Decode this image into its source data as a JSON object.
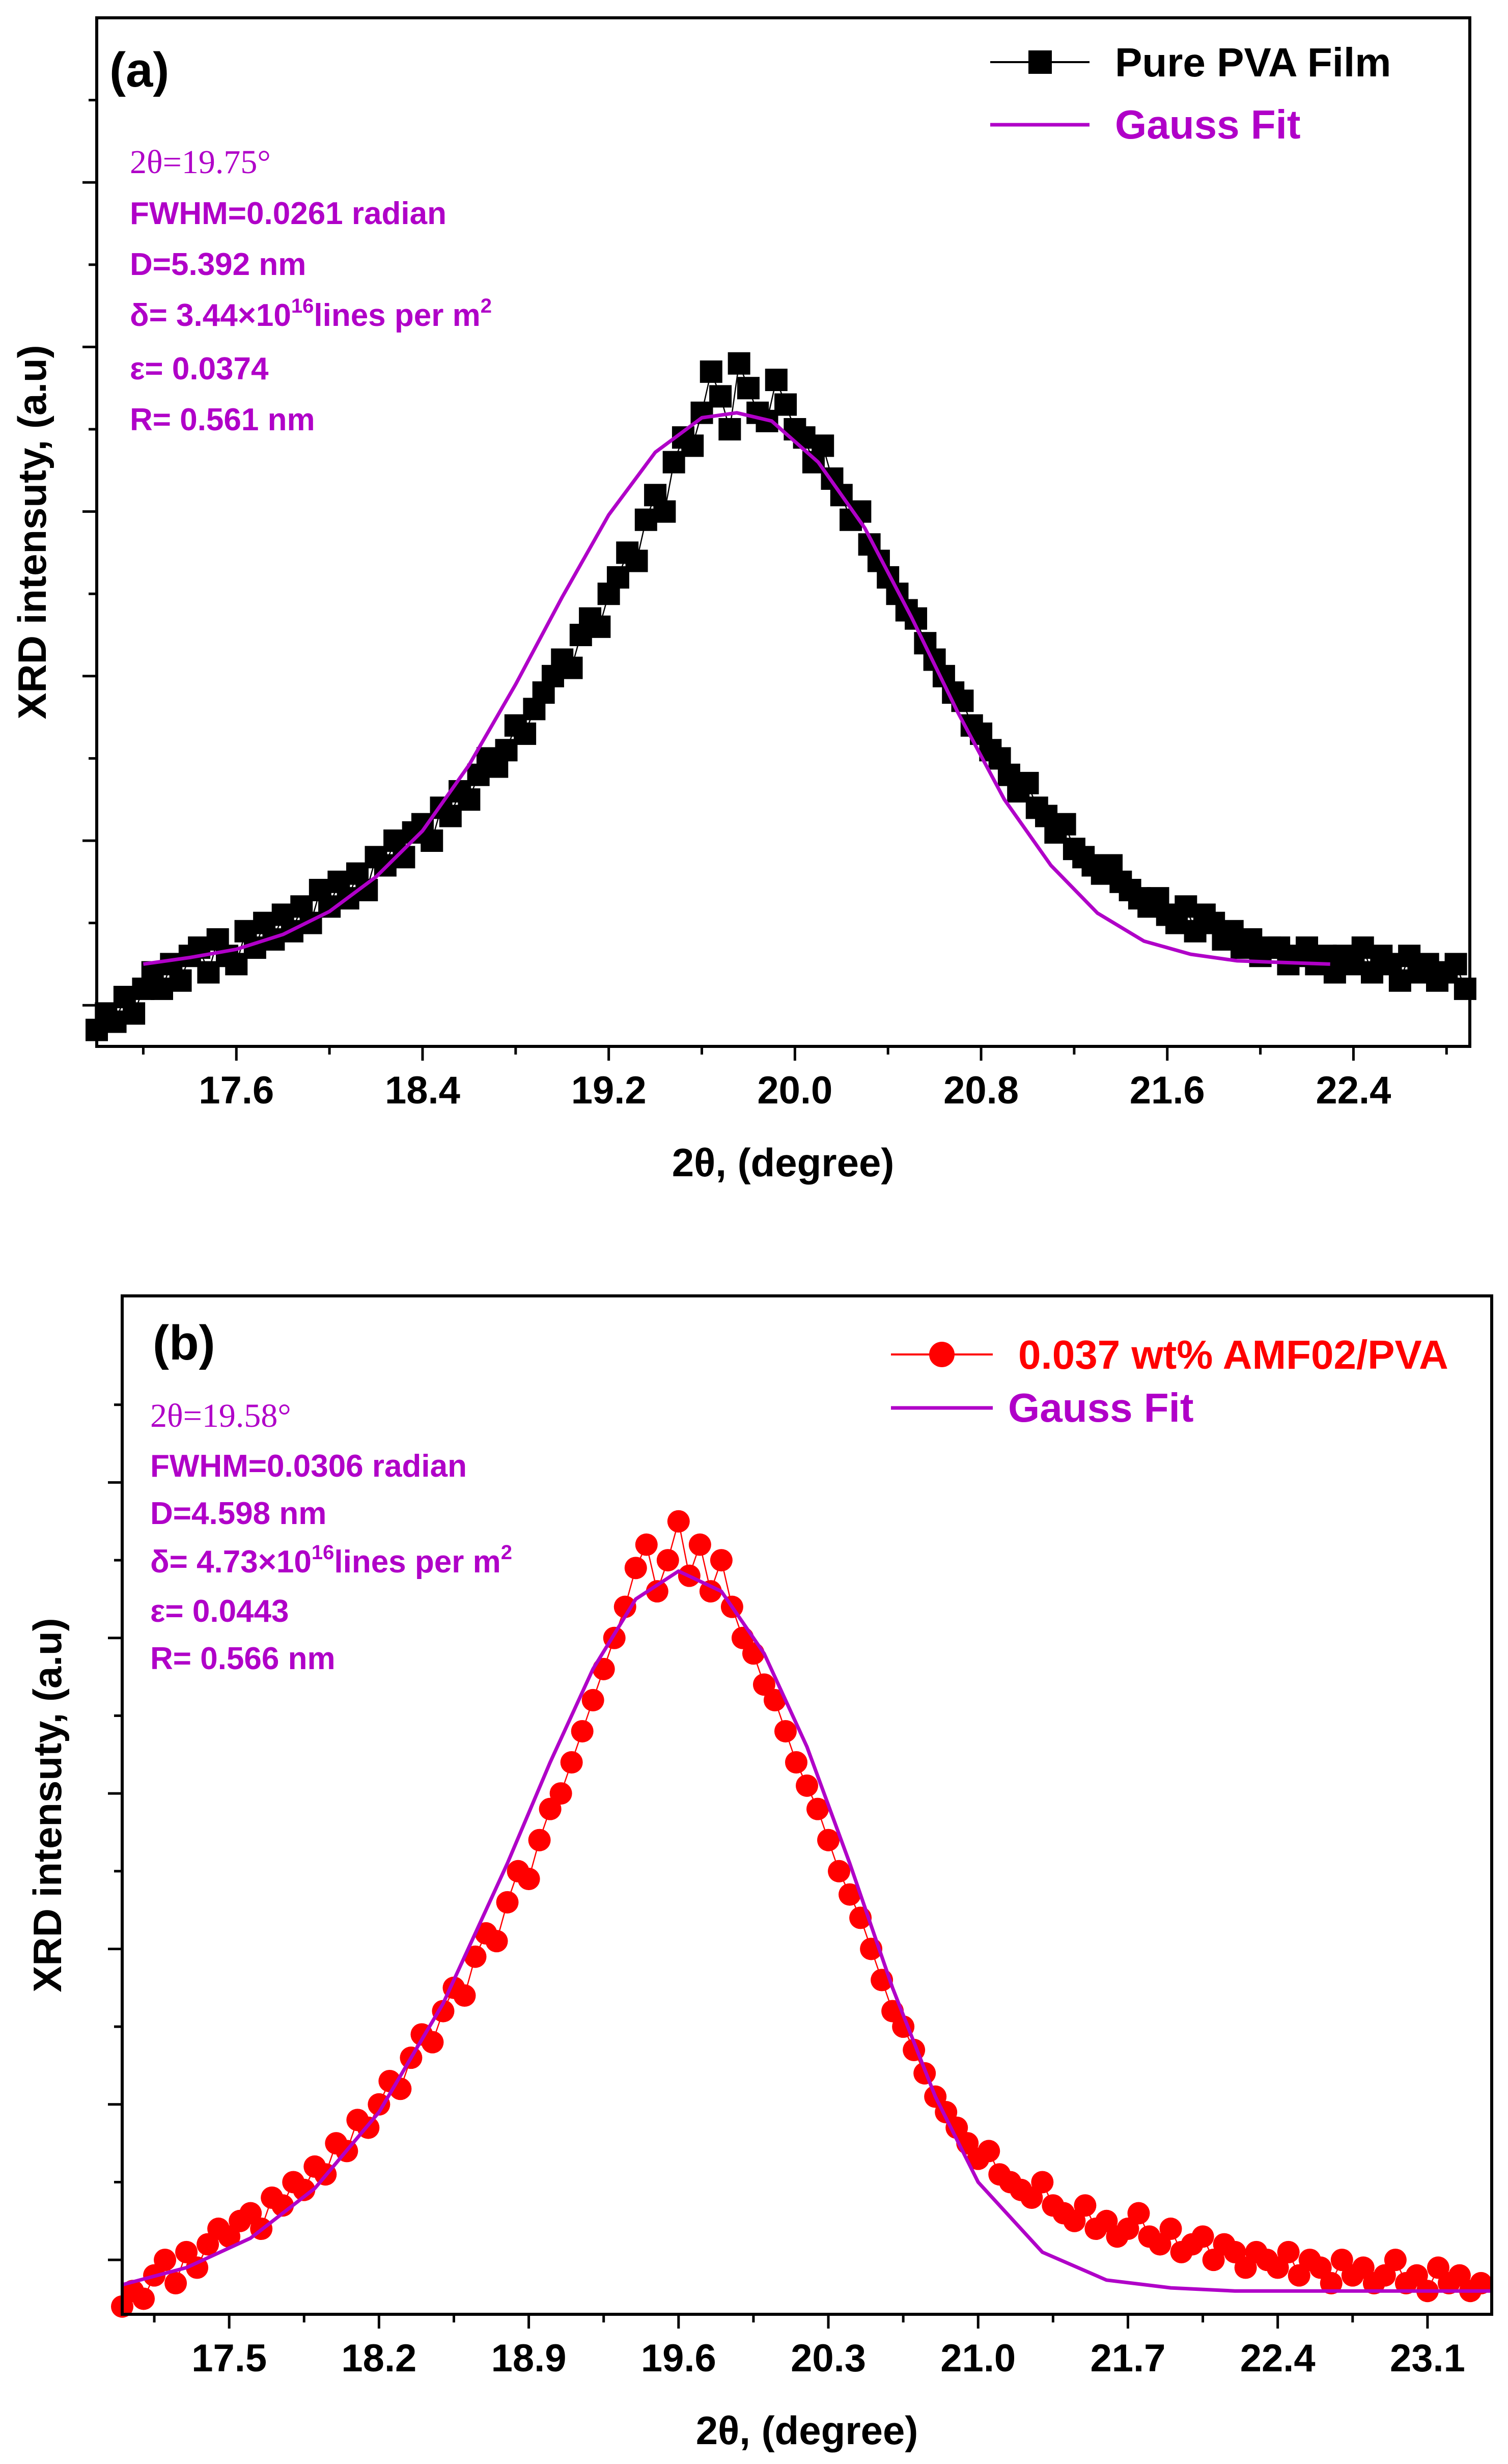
{
  "chart_data": [
    {
      "type": "scatter",
      "panel_label": "(a)",
      "xlabel": "2θ, (degree)",
      "ylabel": "XRD intensuty, (a.u)",
      "xlim": [
        17.0,
        22.9
      ],
      "ylim": [
        0.75,
        7.0
      ],
      "x_ticks": [
        "17.6",
        "18.4",
        "19.2",
        "20.0",
        "20.8",
        "21.6",
        "22.4"
      ],
      "x_tick_values": [
        17.6,
        18.4,
        19.2,
        20.0,
        20.8,
        21.6,
        22.4
      ],
      "y_major_ticks": [
        1,
        2,
        3,
        4,
        5,
        6
      ],
      "series": [
        {
          "name": "Pure PVA Film",
          "marker": "square",
          "color": "#000000",
          "x": [
            17.0,
            17.04,
            17.08,
            17.12,
            17.16,
            17.2,
            17.24,
            17.28,
            17.32,
            17.36,
            17.4,
            17.44,
            17.48,
            17.52,
            17.56,
            17.6,
            17.64,
            17.68,
            17.72,
            17.76,
            17.8,
            17.84,
            17.88,
            17.92,
            17.96,
            18.0,
            18.04,
            18.08,
            18.12,
            18.16,
            18.2,
            18.24,
            18.28,
            18.32,
            18.36,
            18.4,
            18.44,
            18.48,
            18.52,
            18.56,
            18.6,
            18.64,
            18.68,
            18.72,
            18.76,
            18.8,
            18.84,
            18.88,
            18.92,
            18.96,
            19.0,
            19.04,
            19.08,
            19.12,
            19.16,
            19.2,
            19.24,
            19.28,
            19.32,
            19.36,
            19.4,
            19.44,
            19.48,
            19.52,
            19.56,
            19.6,
            19.64,
            19.68,
            19.72,
            19.76,
            19.8,
            19.84,
            19.88,
            19.92,
            19.96,
            20.0,
            20.04,
            20.08,
            20.12,
            20.16,
            20.2,
            20.24,
            20.28,
            20.32,
            20.36,
            20.4,
            20.44,
            20.48,
            20.52,
            20.56,
            20.6,
            20.64,
            20.68,
            20.72,
            20.76,
            20.8,
            20.84,
            20.88,
            20.92,
            20.96,
            21.0,
            21.04,
            21.08,
            21.12,
            21.16,
            21.2,
            21.24,
            21.28,
            21.32,
            21.36,
            21.4,
            21.44,
            21.48,
            21.52,
            21.56,
            21.6,
            21.64,
            21.68,
            21.72,
            21.76,
            21.8,
            21.84,
            21.88,
            21.92,
            21.96,
            22.0,
            22.04,
            22.08,
            22.12,
            22.16,
            22.2,
            22.24,
            22.28,
            22.32,
            22.36,
            22.4,
            22.44,
            22.48,
            22.52,
            22.56,
            22.6,
            22.64,
            22.68,
            22.72,
            22.76,
            22.8,
            22.84,
            22.88
          ],
          "y": [
            0.85,
            0.95,
            0.9,
            1.05,
            0.95,
            1.1,
            1.2,
            1.1,
            1.25,
            1.15,
            1.3,
            1.35,
            1.2,
            1.4,
            1.3,
            1.25,
            1.45,
            1.35,
            1.5,
            1.4,
            1.55,
            1.45,
            1.6,
            1.5,
            1.7,
            1.6,
            1.75,
            1.65,
            1.8,
            1.7,
            1.9,
            1.85,
            2.0,
            1.9,
            2.05,
            2.1,
            2.0,
            2.2,
            2.15,
            2.3,
            2.25,
            2.4,
            2.5,
            2.45,
            2.55,
            2.7,
            2.65,
            2.8,
            2.9,
            3.0,
            3.1,
            3.05,
            3.25,
            3.35,
            3.3,
            3.5,
            3.6,
            3.75,
            3.7,
            3.95,
            4.1,
            4.0,
            4.3,
            4.45,
            4.4,
            4.6,
            4.85,
            4.7,
            4.5,
            4.9,
            4.75,
            4.6,
            4.55,
            4.8,
            4.65,
            4.5,
            4.45,
            4.3,
            4.4,
            4.2,
            4.1,
            3.95,
            4.0,
            3.8,
            3.7,
            3.6,
            3.5,
            3.4,
            3.35,
            3.2,
            3.1,
            3.0,
            2.9,
            2.85,
            2.7,
            2.65,
            2.55,
            2.5,
            2.4,
            2.3,
            2.35,
            2.2,
            2.15,
            2.05,
            2.1,
            1.95,
            1.9,
            1.85,
            1.8,
            1.85,
            1.75,
            1.7,
            1.65,
            1.6,
            1.65,
            1.55,
            1.5,
            1.6,
            1.45,
            1.55,
            1.5,
            1.4,
            1.45,
            1.35,
            1.4,
            1.3,
            1.35,
            1.35,
            1.25,
            1.3,
            1.35,
            1.25,
            1.3,
            1.2,
            1.3,
            1.25,
            1.35,
            1.2,
            1.3,
            1.25,
            1.15,
            1.3,
            1.2,
            1.25,
            1.15,
            1.2,
            1.25,
            1.1
          ]
        },
        {
          "name": "Gauss Fit",
          "color": "#b000c8",
          "x": [
            17.2,
            17.4,
            17.6,
            17.8,
            18.0,
            18.2,
            18.4,
            18.6,
            18.8,
            19.0,
            19.2,
            19.4,
            19.6,
            19.75,
            19.9,
            20.1,
            20.3,
            20.5,
            20.7,
            20.9,
            21.1,
            21.3,
            21.5,
            21.7,
            21.9,
            22.1,
            22.3
          ],
          "y": [
            1.25,
            1.29,
            1.34,
            1.43,
            1.57,
            1.78,
            2.06,
            2.46,
            2.95,
            3.48,
            3.98,
            4.36,
            4.57,
            4.6,
            4.55,
            4.3,
            3.9,
            3.36,
            2.78,
            2.25,
            1.85,
            1.56,
            1.39,
            1.31,
            1.27,
            1.26,
            1.25
          ]
        }
      ],
      "annotations": {
        "two_theta": "2θ=19.75°",
        "fwhm": "FWHM=0.0261 radian",
        "d": "D=5.392 nm",
        "delta_prefix": "δ= 3.44×10",
        "delta_exp": "16",
        "delta_suffix": "lines per m",
        "delta_sup2": "2",
        "epsilon": "ε= 0.0374",
        "r": "R= 0.561 nm"
      }
    },
    {
      "type": "scatter",
      "panel_label": "(b)",
      "xlabel": "2θ, (degree)",
      "ylabel": "XRD intensuty, (a.u)",
      "xlim": [
        17.0,
        23.4
      ],
      "ylim": [
        0.65,
        7.2
      ],
      "x_ticks": [
        "17.5",
        "18.2",
        "18.9",
        "19.6",
        "20.3",
        "21.0",
        "21.7",
        "22.4",
        "23.1"
      ],
      "x_tick_values": [
        17.5,
        18.2,
        18.9,
        19.6,
        20.3,
        21.0,
        21.7,
        22.4,
        23.1
      ],
      "y_major_ticks": [
        1,
        2,
        3,
        4,
        5,
        6
      ],
      "series": [
        {
          "name": "0.037 wt% AMF02/PVA",
          "marker": "circle",
          "color": "#ff0000",
          "x": [
            17.0,
            17.05,
            17.1,
            17.15,
            17.2,
            17.25,
            17.3,
            17.35,
            17.4,
            17.45,
            17.5,
            17.55,
            17.6,
            17.65,
            17.7,
            17.75,
            17.8,
            17.85,
            17.9,
            17.95,
            18.0,
            18.05,
            18.1,
            18.15,
            18.2,
            18.25,
            18.3,
            18.35,
            18.4,
            18.45,
            18.5,
            18.55,
            18.6,
            18.65,
            18.7,
            18.75,
            18.8,
            18.85,
            18.9,
            18.95,
            19.0,
            19.05,
            19.1,
            19.15,
            19.2,
            19.25,
            19.3,
            19.35,
            19.4,
            19.45,
            19.5,
            19.55,
            19.6,
            19.65,
            19.7,
            19.75,
            19.8,
            19.85,
            19.9,
            19.95,
            20.0,
            20.05,
            20.1,
            20.15,
            20.2,
            20.25,
            20.3,
            20.35,
            20.4,
            20.45,
            20.5,
            20.55,
            20.6,
            20.65,
            20.7,
            20.75,
            20.8,
            20.85,
            20.9,
            20.95,
            21.0,
            21.05,
            21.1,
            21.15,
            21.2,
            21.25,
            21.3,
            21.35,
            21.4,
            21.45,
            21.5,
            21.55,
            21.6,
            21.65,
            21.7,
            21.75,
            21.8,
            21.85,
            21.9,
            21.95,
            22.0,
            22.05,
            22.1,
            22.15,
            22.2,
            22.25,
            22.3,
            22.35,
            22.4,
            22.45,
            22.5,
            22.55,
            22.6,
            22.65,
            22.7,
            22.75,
            22.8,
            22.85,
            22.9,
            22.95,
            23.0,
            23.05,
            23.1,
            23.15,
            23.2,
            23.25,
            23.3,
            23.35
          ],
          "y": [
            0.7,
            0.8,
            0.75,
            0.9,
            1.0,
            0.85,
            1.05,
            0.95,
            1.1,
            1.2,
            1.15,
            1.25,
            1.3,
            1.2,
            1.4,
            1.35,
            1.5,
            1.45,
            1.6,
            1.55,
            1.75,
            1.7,
            1.9,
            1.85,
            2.0,
            2.15,
            2.1,
            2.3,
            2.45,
            2.4,
            2.6,
            2.75,
            2.7,
            2.95,
            3.1,
            3.05,
            3.3,
            3.5,
            3.45,
            3.7,
            3.9,
            4.0,
            4.2,
            4.4,
            4.6,
            4.8,
            5.0,
            5.2,
            5.45,
            5.6,
            5.3,
            5.5,
            5.75,
            5.4,
            5.6,
            5.3,
            5.5,
            5.2,
            5.0,
            4.9,
            4.7,
            4.6,
            4.4,
            4.2,
            4.05,
            3.9,
            3.7,
            3.5,
            3.35,
            3.2,
            3.0,
            2.8,
            2.6,
            2.5,
            2.35,
            2.2,
            2.05,
            1.95,
            1.85,
            1.75,
            1.65,
            1.7,
            1.55,
            1.5,
            1.45,
            1.4,
            1.5,
            1.35,
            1.3,
            1.25,
            1.35,
            1.2,
            1.25,
            1.15,
            1.2,
            1.3,
            1.15,
            1.1,
            1.2,
            1.05,
            1.1,
            1.15,
            1.0,
            1.1,
            1.05,
            0.95,
            1.05,
            1.0,
            0.95,
            1.05,
            0.9,
            1.0,
            0.95,
            0.85,
            1.0,
            0.9,
            0.95,
            0.85,
            0.9,
            1.0,
            0.85,
            0.9,
            0.8,
            0.95,
            0.85,
            0.9,
            0.8,
            0.85
          ]
        },
        {
          "name": "Gauss Fit",
          "color": "#b000c8",
          "x": [
            17.0,
            17.3,
            17.6,
            17.9,
            18.2,
            18.5,
            18.8,
            19.0,
            19.2,
            19.4,
            19.6,
            19.8,
            20.0,
            20.2,
            20.4,
            20.6,
            20.8,
            21.0,
            21.3,
            21.6,
            21.9,
            22.2,
            22.5,
            22.8,
            23.1,
            23.4
          ],
          "y": [
            0.84,
            0.95,
            1.14,
            1.46,
            1.95,
            2.65,
            3.55,
            4.2,
            4.8,
            5.25,
            5.43,
            5.3,
            4.9,
            4.3,
            3.55,
            2.75,
            2.05,
            1.5,
            1.05,
            0.87,
            0.82,
            0.8,
            0.8,
            0.8,
            0.8,
            0.8
          ]
        }
      ],
      "annotations": {
        "two_theta": "2θ=19.58°",
        "fwhm": "FWHM=0.0306 radian",
        "d": "D=4.598 nm",
        "delta_prefix": "δ= 4.73×10",
        "delta_exp": "16",
        "delta_suffix": "lines per m",
        "delta_sup2": "2",
        "epsilon": "ε= 0.0443",
        "r": "R= 0.566 nm"
      }
    }
  ]
}
